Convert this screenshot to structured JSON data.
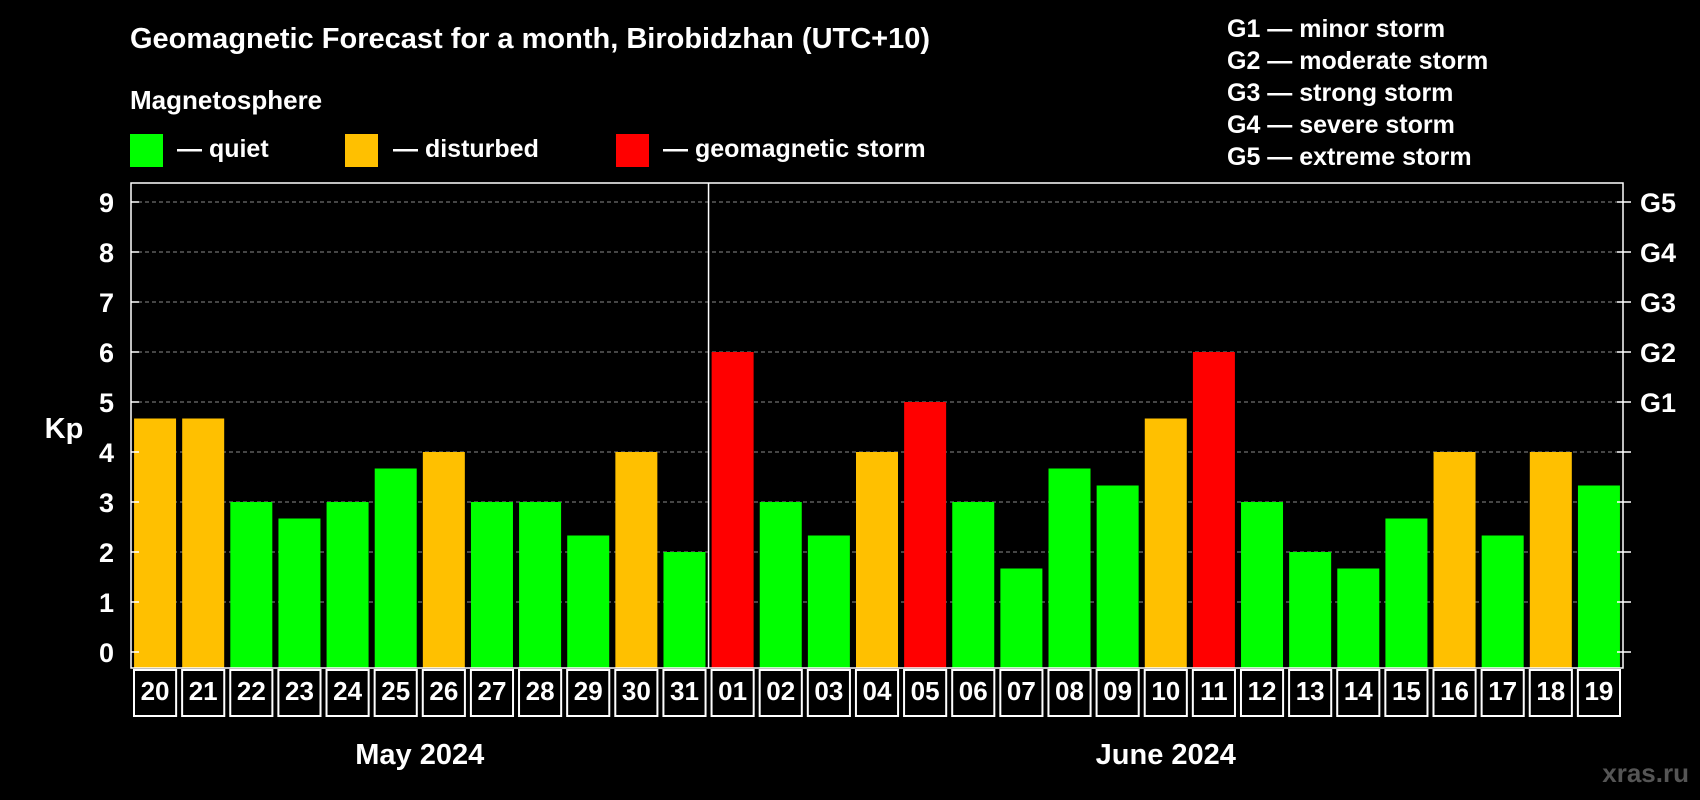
{
  "header": {
    "title": "Geomagnetic Forecast for a month, Birobidzhan (UTC+10)",
    "section_label": "Magnetosphere"
  },
  "legend": [
    {
      "color": "#00ff00",
      "label": "— quiet"
    },
    {
      "color": "#ffc000",
      "label": "— disturbed"
    },
    {
      "color": "#ff0000",
      "label": "— geomagnetic storm"
    }
  ],
  "storm_scale": [
    {
      "text": "G1 — minor storm"
    },
    {
      "text": "G2 — moderate storm"
    },
    {
      "text": "G3 — strong storm"
    },
    {
      "text": "G4 — severe storm"
    },
    {
      "text": "G5 — extreme storm"
    }
  ],
  "watermark": "xras.ru",
  "chart_data": {
    "type": "bar",
    "ylabel": "Kp",
    "ylim": [
      0,
      9
    ],
    "yticks": [
      "0",
      "1",
      "2",
      "3",
      "4",
      "5",
      "6",
      "7",
      "8",
      "9"
    ],
    "right_axis": [
      {
        "kp": 5,
        "label": "G1"
      },
      {
        "kp": 6,
        "label": "G2"
      },
      {
        "kp": 7,
        "label": "G3"
      },
      {
        "kp": 8,
        "label": "G4"
      },
      {
        "kp": 9,
        "label": "G5"
      }
    ],
    "grid": true,
    "months": [
      {
        "label": "May 2024",
        "first": 0,
        "last": 11
      },
      {
        "label": "June 2024",
        "first": 12,
        "last": 30
      }
    ],
    "categories": [
      "20",
      "21",
      "22",
      "23",
      "24",
      "25",
      "26",
      "27",
      "28",
      "29",
      "30",
      "31",
      "01",
      "02",
      "03",
      "04",
      "05",
      "06",
      "07",
      "08",
      "09",
      "10",
      "11",
      "12",
      "13",
      "14",
      "15",
      "16",
      "17",
      "18",
      "19"
    ],
    "values": [
      4.67,
      4.67,
      3.0,
      2.67,
      3.0,
      3.67,
      4.0,
      3.0,
      3.0,
      2.33,
      4.0,
      2.0,
      6.0,
      3.0,
      2.33,
      4.0,
      5.0,
      3.0,
      1.67,
      3.67,
      3.33,
      4.67,
      6.0,
      3.0,
      2.0,
      1.67,
      2.67,
      4.0,
      2.33,
      4.0,
      3.33
    ],
    "levels": [
      "disturbed",
      "disturbed",
      "quiet",
      "quiet",
      "quiet",
      "quiet",
      "disturbed",
      "quiet",
      "quiet",
      "quiet",
      "disturbed",
      "quiet",
      "storm",
      "quiet",
      "quiet",
      "disturbed",
      "storm",
      "quiet",
      "quiet",
      "quiet",
      "quiet",
      "disturbed",
      "storm",
      "quiet",
      "quiet",
      "quiet",
      "quiet",
      "disturbed",
      "quiet",
      "disturbed",
      "quiet"
    ],
    "level_colors": {
      "quiet": "#00ff00",
      "disturbed": "#ffc000",
      "storm": "#ff0000"
    }
  }
}
